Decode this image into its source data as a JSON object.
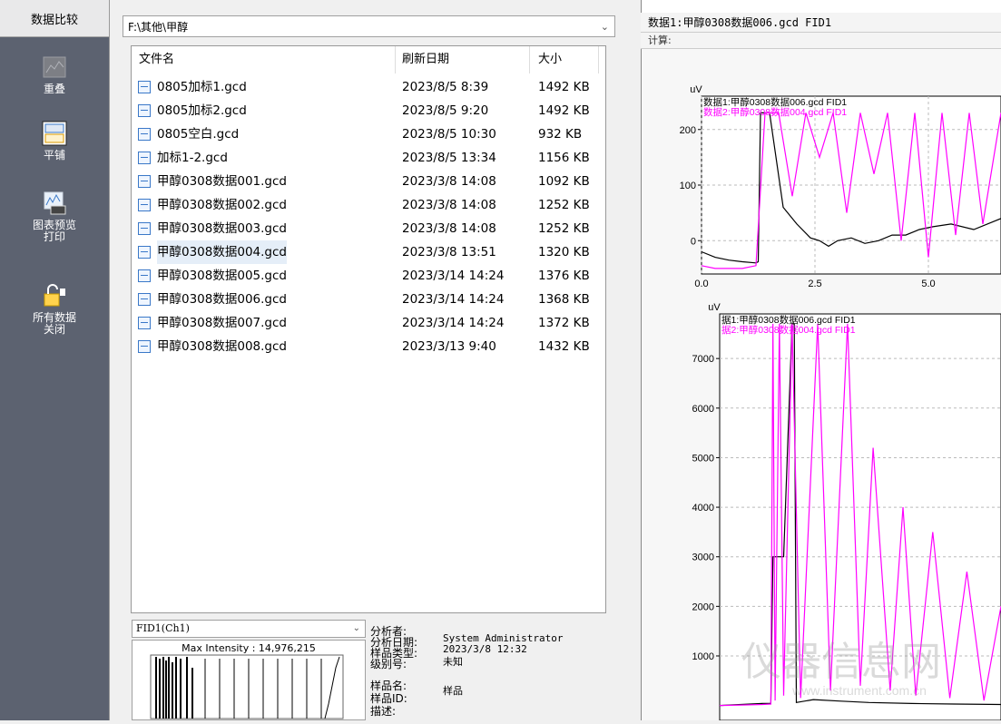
{
  "nav": {
    "header": "数据比较",
    "items": [
      {
        "label_lines": [
          "重叠"
        ],
        "icon": "overlay-chart-icon"
      },
      {
        "label_lines": [
          "平铺"
        ],
        "icon": "tile-chart-icon"
      },
      {
        "label_lines": [
          "图表预览",
          "打印"
        ],
        "icon": "print-preview-icon"
      },
      {
        "label_lines": [
          "所有数据",
          "关闭"
        ],
        "icon": "close-all-data-icon"
      }
    ]
  },
  "path": "F:\\其他\\甲醇",
  "file_list": {
    "headers": {
      "name": "文件名",
      "date": "刷新日期",
      "size": "大小"
    },
    "rows": [
      {
        "name": "0805加标1.gcd",
        "date": "2023/8/5 8:39",
        "size": "1492 KB"
      },
      {
        "name": "0805加标2.gcd",
        "date": "2023/8/5 9:20",
        "size": "1492 KB"
      },
      {
        "name": "0805空白.gcd",
        "date": "2023/8/5 10:30",
        "size": "932 KB"
      },
      {
        "name": "加标1-2.gcd",
        "date": "2023/8/5 13:34",
        "size": "1156 KB"
      },
      {
        "name": "甲醇0308数据001.gcd",
        "date": "2023/3/8 14:08",
        "size": "1092 KB"
      },
      {
        "name": "甲醇0308数据002.gcd",
        "date": "2023/3/8 14:08",
        "size": "1252 KB"
      },
      {
        "name": "甲醇0308数据003.gcd",
        "date": "2023/3/8 14:08",
        "size": "1252 KB"
      },
      {
        "name": "甲醇0308数据004.gcd",
        "date": "2023/3/8 13:51",
        "size": "1320 KB"
      },
      {
        "name": "甲醇0308数据005.gcd",
        "date": "2023/3/14 14:24",
        "size": "1376 KB"
      },
      {
        "name": "甲醇0308数据006.gcd",
        "date": "2023/3/14 14:24",
        "size": "1368 KB"
      },
      {
        "name": "甲醇0308数据007.gcd",
        "date": "2023/3/14 14:24",
        "size": "1372 KB"
      },
      {
        "name": "甲醇0308数据008.gcd",
        "date": "2023/3/13 9:40",
        "size": "1432 KB"
      }
    ],
    "selected_name": "甲醇0308数据004.gcd"
  },
  "preview": {
    "channel": "FID1(Ch1)",
    "max_intensity": "Max Intensity : 14,976,215",
    "info_labels": [
      "分析者:",
      "分析日期:",
      "样品类型:",
      "级别号:",
      "样品名:",
      "样品ID:",
      "描述:"
    ],
    "info_values": {
      "analyst": "System Administrator",
      "date": "2023/3/8 12:32",
      "type": "未知",
      "sample_name": "样品"
    }
  },
  "right": {
    "title": "数据1:甲醇0308数据006.gcd FID1",
    "calc_label": "计算:",
    "watermark": "仪器信息网",
    "watermark_url": "www.instrument.com.cn"
  },
  "chart_data": [
    {
      "type": "line",
      "ylabel": "uV",
      "yticks": [
        0,
        100,
        200
      ],
      "xticks": [
        "0.0",
        "2.5",
        "5.0"
      ],
      "series": [
        {
          "name": "数据1:甲醇0308数据006.gcd FID1",
          "color": "#000000",
          "x": [
            0,
            0.3,
            0.6,
            0.9,
            1.2,
            1.25,
            1.3,
            1.5,
            1.8,
            2.1,
            2.4,
            2.6,
            2.8,
            3.0,
            3.3,
            3.6,
            3.9,
            4.2,
            4.5,
            4.8,
            5.1,
            5.5,
            6.0,
            6.6
          ],
          "y": [
            -20,
            -30,
            -35,
            -38,
            -40,
            -38,
            230,
            230,
            60,
            30,
            5,
            0,
            -10,
            0,
            5,
            -5,
            0,
            10,
            10,
            20,
            25,
            30,
            20,
            40
          ]
        },
        {
          "name": "数据2:甲醇0308数据004.gcd FID1",
          "color": "#ff00ff",
          "x": [
            0,
            0.3,
            0.6,
            0.9,
            1.2,
            1.4,
            1.7,
            2.0,
            2.3,
            2.6,
            2.9,
            3.2,
            3.5,
            3.8,
            4.1,
            4.4,
            4.7,
            5.0,
            5.3,
            5.6,
            5.9,
            6.2,
            6.6
          ],
          "y": [
            -45,
            -50,
            -50,
            -50,
            -45,
            230,
            230,
            80,
            230,
            150,
            230,
            50,
            230,
            120,
            230,
            0,
            230,
            -30,
            230,
            10,
            230,
            30,
            230
          ]
        }
      ]
    },
    {
      "type": "line",
      "ylabel": "uV",
      "yticks": [
        1000,
        2000,
        3000,
        4000,
        5000,
        6000,
        7000
      ],
      "series": [
        {
          "name": "据1:甲醇0308数据006.gcd FID1",
          "color": "#000000",
          "x": [
            0,
            0.5,
            1.0,
            1.2,
            1.25,
            1.3,
            1.5,
            1.7,
            1.75,
            1.8,
            2.2,
            2.8,
            3.5,
            4.5,
            5.5,
            6.6
          ],
          "y": [
            0,
            20,
            40,
            40,
            3000,
            3000,
            3000,
            7700,
            7700,
            60,
            120,
            90,
            60,
            40,
            30,
            20
          ]
        },
        {
          "name": "据2:甲醇0308数据004.gcd FID1",
          "color": "#ff00ff",
          "x": [
            0,
            0.5,
            1.0,
            1.2,
            1.25,
            1.3,
            1.4,
            1.5,
            1.7,
            1.9,
            2.3,
            2.6,
            3.0,
            3.3,
            3.6,
            4.0,
            4.3,
            4.6,
            5.0,
            5.4,
            5.8,
            6.2,
            6.6
          ],
          "y": [
            0,
            10,
            20,
            30,
            7700,
            100,
            7700,
            200,
            7700,
            150,
            7700,
            300,
            7700,
            400,
            5200,
            300,
            4000,
            200,
            3500,
            150,
            2700,
            100,
            2000
          ]
        }
      ]
    }
  ]
}
